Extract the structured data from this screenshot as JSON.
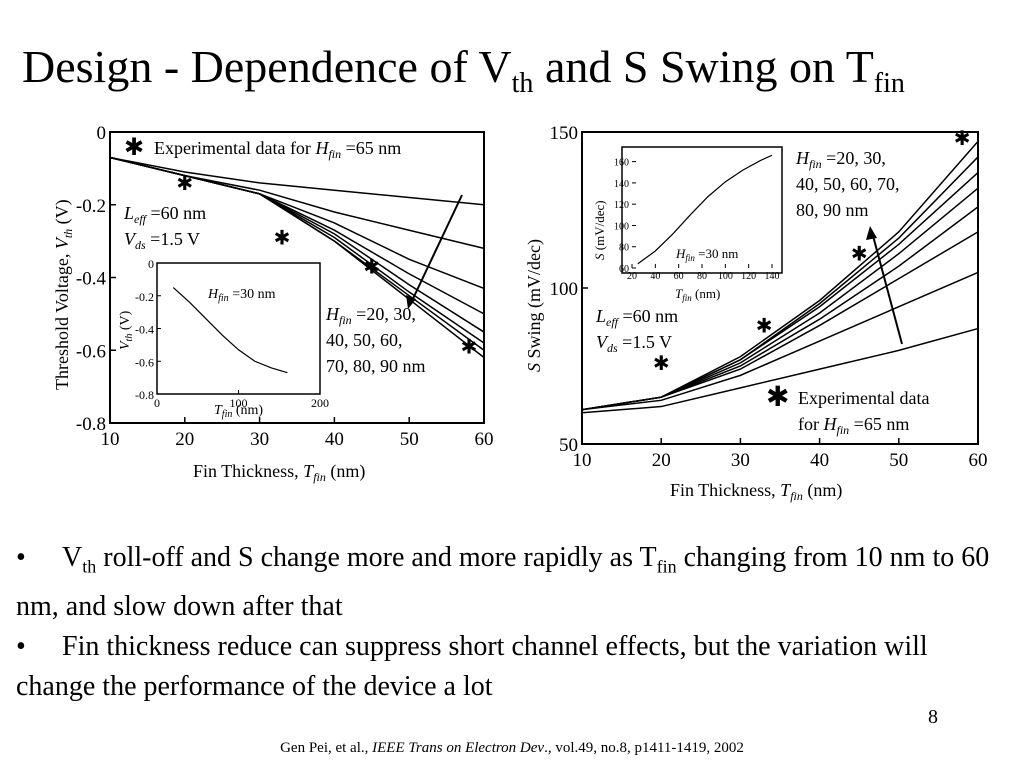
{
  "slide": {
    "title": {
      "pre": "Design - Dependence of V",
      "sub1": "th",
      "mid": " and S Swing on T",
      "sub2": "fin"
    },
    "bullets": [
      {
        "v": "V",
        "v_sub": "th",
        "text1": " roll-off and S change more and more rapidly as T",
        "t_sub": "fin",
        "text2": " changing from 10 nm to 60 nm, and slow down after that"
      },
      {
        "text": "Fin thickness reduce can suppress short channel effects, but the variation will change the performance of the device a lot"
      }
    ],
    "bullet_glyph": "•",
    "page_number": "8",
    "citation": {
      "authors": "Gen Pei, et al., ",
      "journal": "IEEE Trans on Electron Dev",
      "rest": "., vol.49, no.8, p1411-1419, 2002"
    }
  },
  "chart_data": [
    {
      "type": "line",
      "xlabel": "Fin Thickness, T_fin (nm)",
      "ylabel": "Threshold Voltage, V_th (V)",
      "xlim": [
        10,
        60
      ],
      "ylim": [
        -0.8,
        0
      ],
      "x_ticks": [
        "10",
        "20",
        "30",
        "40",
        "50",
        "60"
      ],
      "y_ticks": [
        "0",
        "-0.2",
        "-0.4",
        "-0.6",
        "-0.8"
      ],
      "x": [
        10,
        20,
        30,
        40,
        50,
        60
      ],
      "series": [
        {
          "values": [
            -0.07,
            -0.11,
            -0.14,
            -0.16,
            -0.18,
            -0.2
          ]
        },
        {
          "values": [
            -0.07,
            -0.12,
            -0.16,
            -0.22,
            -0.27,
            -0.32
          ]
        },
        {
          "values": [
            -0.07,
            -0.12,
            -0.17,
            -0.25,
            -0.35,
            -0.43
          ]
        },
        {
          "values": [
            -0.07,
            -0.12,
            -0.17,
            -0.27,
            -0.39,
            -0.5
          ]
        },
        {
          "values": [
            -0.07,
            -0.12,
            -0.17,
            -0.28,
            -0.42,
            -0.55
          ]
        },
        {
          "values": [
            -0.07,
            -0.12,
            -0.17,
            -0.29,
            -0.44,
            -0.58
          ]
        },
        {
          "values": [
            -0.07,
            -0.12,
            -0.17,
            -0.3,
            -0.45,
            -0.6
          ]
        },
        {
          "values": [
            -0.07,
            -0.12,
            -0.17,
            -0.3,
            -0.46,
            -0.62
          ]
        }
      ],
      "experimental": [
        [
          20,
          -0.14
        ],
        [
          33,
          -0.29
        ],
        [
          45,
          -0.37
        ],
        [
          58,
          -0.59
        ]
      ],
      "legend": {
        "marker": "✱",
        "pre": "Experimental data for ",
        "H": "H",
        "sub": "fin",
        "post": " =65 nm"
      },
      "annotations": {
        "leff": {
          "l": "L",
          "sub": "eff",
          "text": " =60 nm"
        },
        "vds": {
          "l": "V",
          "sub": "ds",
          "text": " =1.5 V"
        },
        "hfin": {
          "h": "H",
          "sub": "fin",
          "line1": " =20, 30,",
          "line2": "40, 50, 60,",
          "line3": "70, 80, 90 nm"
        }
      },
      "inset": {
        "type": "line",
        "xlabel": "T_fin (nm)",
        "ylabel": "V_th (V)",
        "xlim": [
          0,
          200
        ],
        "ylim": [
          -0.8,
          0
        ],
        "x_ticks": [
          "0",
          "100",
          "200"
        ],
        "y_ticks": [
          "0",
          "-0.2",
          "-0.4",
          "-0.6",
          "-0.8"
        ],
        "x": [
          20,
          40,
          60,
          80,
          100,
          120,
          140,
          160
        ],
        "values": [
          -0.15,
          -0.24,
          -0.34,
          -0.44,
          -0.53,
          -0.6,
          -0.64,
          -0.67
        ],
        "label": {
          "h": "H",
          "sub": "fin",
          "text": " =30 nm"
        }
      }
    },
    {
      "type": "line",
      "xlabel": "Fin Thickness, T_fin (nm)",
      "ylabel": "S Swing (mV/dec)",
      "xlim": [
        10,
        60
      ],
      "ylim": [
        50,
        150
      ],
      "x_ticks": [
        "10",
        "20",
        "30",
        "40",
        "50",
        "60"
      ],
      "y_ticks": [
        "50",
        "100",
        "150"
      ],
      "x": [
        10,
        20,
        30,
        40,
        50,
        60
      ],
      "series": [
        {
          "values": [
            60,
            62,
            68,
            74,
            80,
            87
          ]
        },
        {
          "values": [
            61,
            64,
            72,
            83,
            94,
            105
          ]
        },
        {
          "values": [
            61,
            65,
            74,
            88,
            103,
            118
          ]
        },
        {
          "values": [
            61,
            65,
            75,
            90,
            107,
            126
          ]
        },
        {
          "values": [
            61,
            65,
            76,
            92,
            111,
            132
          ]
        },
        {
          "values": [
            61,
            65,
            77,
            94,
            114,
            137
          ]
        },
        {
          "values": [
            61,
            65,
            77,
            95,
            116,
            142
          ]
        },
        {
          "values": [
            61,
            65,
            78,
            96,
            118,
            147
          ]
        }
      ],
      "experimental": [
        [
          20,
          76
        ],
        [
          33,
          88
        ],
        [
          45,
          111
        ],
        [
          58,
          148
        ]
      ],
      "legend": {
        "marker": "✱",
        "line1": "Experimental data",
        "pre2": "for ",
        "H": "H",
        "sub": "fin",
        "post": " =65 nm"
      },
      "annotations": {
        "leff": {
          "l": "L",
          "sub": "eff",
          "text": " =60 nm"
        },
        "vds": {
          "l": "V",
          "sub": "ds",
          "text": " =1.5 V"
        },
        "hfin": {
          "h": "H",
          "sub": "fin",
          "line1": " =20, 30,",
          "line2": "40, 50, 60, 70,",
          "line3": "80, 90 nm"
        }
      },
      "inset": {
        "type": "line",
        "xlabel": "T_fin (nm)",
        "ylabel": "S (mV/dec)",
        "xlim": [
          20,
          140
        ],
        "ylim": [
          60,
          170
        ],
        "x_ticks": [
          "20",
          "40",
          "60",
          "80",
          "100",
          "120",
          "140"
        ],
        "y_ticks": [
          "60",
          "80",
          "100",
          "120",
          "140",
          "160"
        ],
        "x": [
          25,
          40,
          55,
          70,
          85,
          100,
          115,
          130,
          140
        ],
        "values": [
          64,
          76,
          92,
          110,
          127,
          141,
          152,
          161,
          166
        ],
        "label": {
          "h": "H",
          "sub": "fin",
          "text": " =30 nm"
        }
      }
    }
  ]
}
